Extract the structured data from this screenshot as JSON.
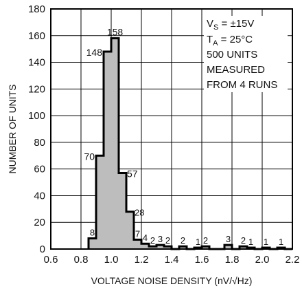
{
  "chart_data": {
    "type": "bar",
    "subtype": "histogram",
    "xlabel": "VOLTAGE NOISE DENSITY (nV/√Hz)",
    "ylabel": "NUMBER OF UNITS",
    "xlim": [
      0.6,
      2.2
    ],
    "ylim": [
      0,
      180
    ],
    "xticks": [
      "0.6",
      "0.8",
      "1.0",
      "1.2",
      "1.4",
      "1.6",
      "1.8",
      "2.0",
      "2.2"
    ],
    "yticks": [
      "0",
      "20",
      "40",
      "60",
      "80",
      "100",
      "120",
      "140",
      "160",
      "180"
    ],
    "grid": true,
    "bin_width": 0.05,
    "bins": [
      {
        "start": 0.85,
        "value": 8,
        "label": "8"
      },
      {
        "start": 0.9,
        "value": 70,
        "label": "70"
      },
      {
        "start": 0.95,
        "value": 148,
        "label": "148"
      },
      {
        "start": 1.0,
        "value": 158,
        "label": "158"
      },
      {
        "start": 1.05,
        "value": 57,
        "label": "57"
      },
      {
        "start": 1.1,
        "value": 28,
        "label": "28"
      },
      {
        "start": 1.15,
        "value": 7,
        "label": "7"
      },
      {
        "start": 1.2,
        "value": 4,
        "label": "4"
      },
      {
        "start": 1.25,
        "value": 2,
        "label": "2"
      },
      {
        "start": 1.3,
        "value": 3,
        "label": "3"
      },
      {
        "start": 1.35,
        "value": 2,
        "label": "2"
      },
      {
        "start": 1.4,
        "value": 0,
        "label": ""
      },
      {
        "start": 1.45,
        "value": 2,
        "label": "2"
      },
      {
        "start": 1.5,
        "value": 0,
        "label": ""
      },
      {
        "start": 1.55,
        "value": 1,
        "label": "1"
      },
      {
        "start": 1.6,
        "value": 2,
        "label": "2"
      },
      {
        "start": 1.65,
        "value": 0,
        "label": ""
      },
      {
        "start": 1.7,
        "value": 0,
        "label": ""
      },
      {
        "start": 1.75,
        "value": 3,
        "label": "3"
      },
      {
        "start": 1.8,
        "value": 0,
        "label": ""
      },
      {
        "start": 1.85,
        "value": 2,
        "label": "2"
      },
      {
        "start": 1.9,
        "value": 1,
        "label": "1"
      },
      {
        "start": 1.95,
        "value": 0,
        "label": ""
      },
      {
        "start": 2.0,
        "value": 1,
        "label": "1"
      },
      {
        "start": 2.05,
        "value": 0,
        "label": ""
      },
      {
        "start": 2.1,
        "value": 1,
        "label": "1"
      },
      {
        "start": 2.15,
        "value": 0,
        "label": ""
      }
    ],
    "annotation": {
      "vs_main": "V",
      "vs_sub": "S",
      "vs_rest": " = ±15V",
      "ta_main": "T",
      "ta_sub": "A",
      "ta_rest": " = 25°C",
      "line3": "500 UNITS",
      "line4": "MEASURED",
      "line5": "FROM 4 RUNS"
    },
    "colors": {
      "fill": "#bdbdbd",
      "outline": "#000000"
    }
  }
}
